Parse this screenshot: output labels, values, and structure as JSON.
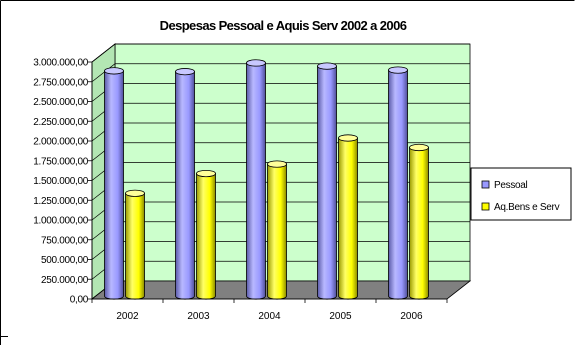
{
  "chart_data": {
    "type": "bar",
    "title": "Despesas Pessoal e Aquis Serv 2002 a 2006",
    "categories": [
      "2002",
      "2003",
      "2004",
      "2005",
      "2006"
    ],
    "series": [
      {
        "name": "Pessoal",
        "values": [
          2850000,
          2840000,
          2950000,
          2910000,
          2860000
        ]
      },
      {
        "name": "Aq.Bens e Serv",
        "values": [
          1300000,
          1550000,
          1670000,
          2000000,
          1880000
        ]
      }
    ],
    "y_ticks": [
      "0,00",
      "250.000,00",
      "500.000,00",
      "750.000,00",
      "1.000.000,00",
      "1.250.000,00",
      "1.500.000,00",
      "1.750.000,00",
      "2.000.000,00",
      "2.250.000,00",
      "2.500.000,00",
      "2.750.000,00",
      "3.000.000,00"
    ],
    "ylim": [
      0,
      3000000
    ],
    "xlabel": "",
    "ylabel": "",
    "grid": true,
    "legend_position": "right",
    "colors": {
      "Pessoal": "#9999ff",
      "Aq.Bens e Serv": "#ffff00",
      "wall": "#ccffcc",
      "floor": "#808080"
    }
  }
}
